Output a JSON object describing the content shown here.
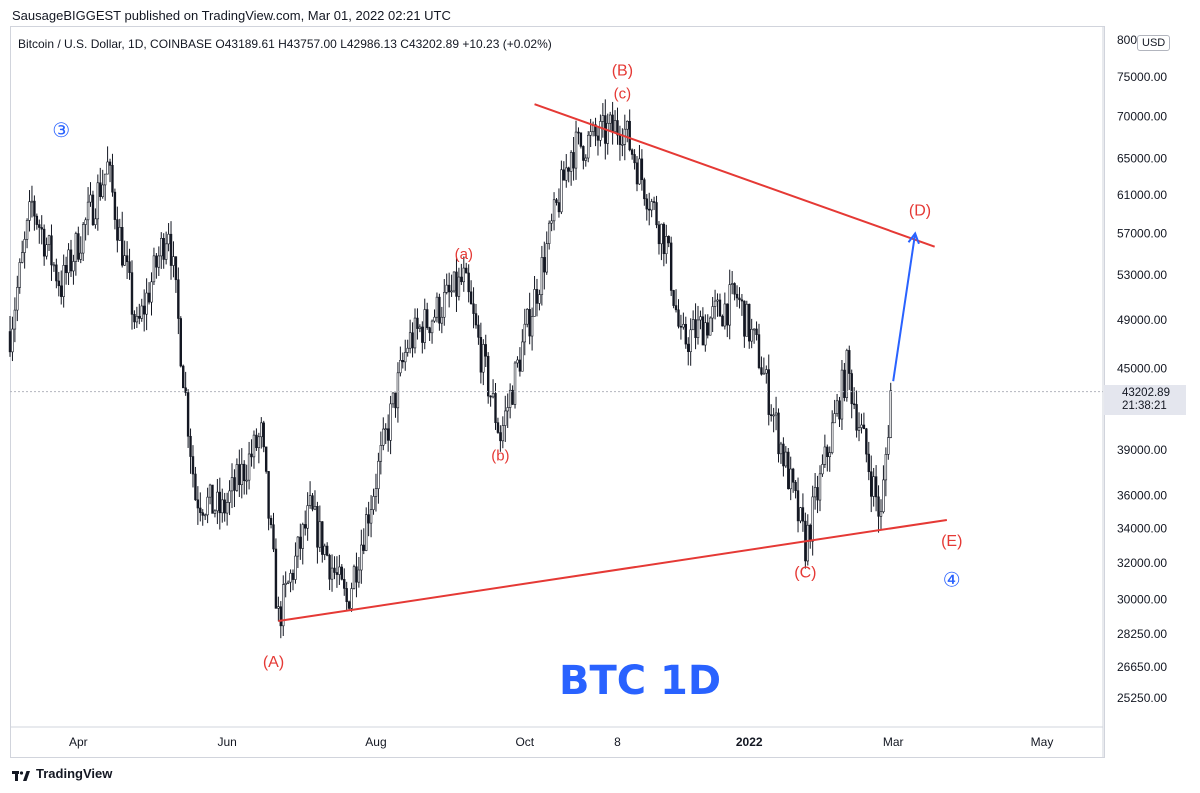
{
  "header": {
    "publisher_line": "SausageBIGGEST published on TradingView.com, Mar 01, 2022 02:21 UTC"
  },
  "legend": {
    "symbol": "Bitcoin / U.S. Dollar, 1D, COINBASE",
    "open": "O43189.61",
    "high": "H43757.00",
    "low": "L42986.13",
    "close": "C43202.89",
    "change": "+10.23 (+0.02%)"
  },
  "price_axis": {
    "currency": "USD",
    "current_price": "43202.89",
    "countdown": "21:38:21"
  },
  "footer": {
    "brand": "TradingView"
  },
  "colors": {
    "candle": "#131722",
    "trendline": "#e53935",
    "wave_label_red": "#e53935",
    "wave_label_blue": "#2962ff",
    "projection_arrow": "#2962ff",
    "title_text": "#2962ff"
  },
  "chart_data": {
    "type": "candlestick",
    "title": "BTC 1D",
    "x_tick_labels": [
      "Apr",
      "Jun",
      "Aug",
      "Oct",
      "8",
      "2022",
      "Mar",
      "May"
    ],
    "x_ticks": [
      {
        "label": "Apr",
        "date": "2021-04-01"
      },
      {
        "label": "Jun",
        "date": "2021-06-01"
      },
      {
        "label": "Aug",
        "date": "2021-08-01"
      },
      {
        "label": "Oct",
        "date": "2021-10-01"
      },
      {
        "label": "8",
        "date": "2021-11-08"
      },
      {
        "label": "2022",
        "date": "2022-01-01"
      },
      {
        "label": "Mar",
        "date": "2022-03-01"
      },
      {
        "label": "May",
        "date": "2022-05-01"
      }
    ],
    "y_tick_labels": [
      "80000.00",
      "75000.00",
      "70000.00",
      "65000.00",
      "61000.00",
      "57000.00",
      "53000.00",
      "49000.00",
      "45000.00",
      "39000.00",
      "36000.00",
      "34000.00",
      "32000.00",
      "30000.00",
      "28250.00",
      "26650.00",
      "25250.00"
    ],
    "y_ticks": [
      80000,
      75000,
      70000,
      65000,
      61000,
      57000,
      53000,
      49000,
      45000,
      39000,
      36000,
      34000,
      32000,
      30000,
      28250,
      26650,
      25250
    ],
    "y_scale": "log",
    "ylim": [
      24000,
      82000
    ],
    "xlim": [
      "2021-03-04",
      "2022-05-26"
    ],
    "grid": false,
    "price_path": [
      {
        "date": "2021-03-04",
        "price": 48000
      },
      {
        "date": "2021-03-13",
        "price": 60000
      },
      {
        "date": "2021-03-25",
        "price": 52000
      },
      {
        "date": "2021-04-13",
        "price": 64000
      },
      {
        "date": "2021-04-25",
        "price": 48000
      },
      {
        "date": "2021-05-08",
        "price": 58000
      },
      {
        "date": "2021-05-19",
        "price": 36000
      },
      {
        "date": "2021-05-30",
        "price": 35000
      },
      {
        "date": "2021-06-15",
        "price": 40000
      },
      {
        "date": "2021-06-22",
        "price": 29000
      },
      {
        "date": "2021-07-05",
        "price": 35000
      },
      {
        "date": "2021-07-20",
        "price": 29800
      },
      {
        "date": "2021-08-14",
        "price": 47000
      },
      {
        "date": "2021-09-06",
        "price": 52500
      },
      {
        "date": "2021-09-21",
        "price": 40000
      },
      {
        "date": "2021-10-20",
        "price": 66000
      },
      {
        "date": "2021-11-10",
        "price": 69000
      },
      {
        "date": "2021-11-28",
        "price": 56000
      },
      {
        "date": "2021-12-04",
        "price": 47000
      },
      {
        "date": "2021-12-27",
        "price": 51000
      },
      {
        "date": "2022-01-05",
        "price": 46000
      },
      {
        "date": "2022-01-24",
        "price": 33000
      },
      {
        "date": "2022-02-10",
        "price": 45000
      },
      {
        "date": "2022-02-24",
        "price": 34500
      },
      {
        "date": "2022-02-28",
        "price": 43200
      }
    ],
    "trendlines": [
      {
        "name": "upper",
        "from": {
          "date": "2021-10-05",
          "price": 71500
        },
        "to": {
          "date": "2022-03-18",
          "price": 55700
        }
      },
      {
        "name": "lower",
        "from": {
          "date": "2021-06-22",
          "price": 28900
        },
        "to": {
          "date": "2022-03-23",
          "price": 34500
        }
      }
    ],
    "projection_arrow": {
      "from": {
        "date": "2022-03-01",
        "price": 44000
      },
      "to": {
        "date": "2022-03-10",
        "price": 57000
      }
    },
    "wave_labels": [
      {
        "text": "③",
        "date": "2021-03-25",
        "price": 67500,
        "color": "blue"
      },
      {
        "text": "(A)",
        "date": "2021-06-20",
        "price": 26650,
        "color": "red"
      },
      {
        "text": "(a)",
        "date": "2021-09-06",
        "price": 54500,
        "color": "red"
      },
      {
        "text": "(b)",
        "date": "2021-09-21",
        "price": 38300,
        "color": "red"
      },
      {
        "text": "(B)",
        "date": "2021-11-10",
        "price": 75200,
        "color": "red"
      },
      {
        "text": "(c)",
        "date": "2021-11-10",
        "price": 72200,
        "color": "red"
      },
      {
        "text": "(C)",
        "date": "2022-01-24",
        "price": 31200,
        "color": "red"
      },
      {
        "text": "(D)",
        "date": "2022-03-12",
        "price": 58800,
        "color": "red"
      },
      {
        "text": "(E)",
        "date": "2022-03-25",
        "price": 32950,
        "color": "red"
      },
      {
        "text": "④",
        "date": "2022-03-25",
        "price": 30700,
        "color": "blue"
      }
    ]
  }
}
